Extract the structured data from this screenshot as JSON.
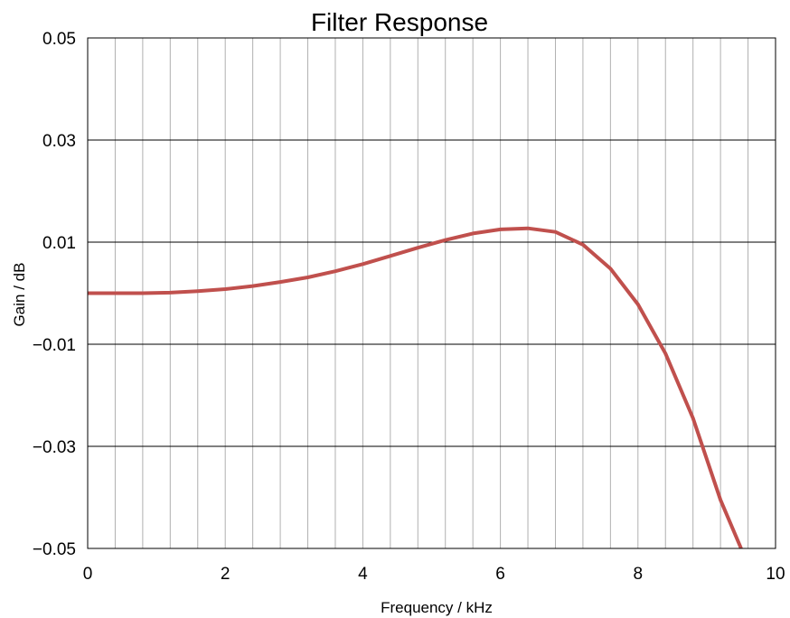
{
  "chart_data": {
    "type": "line",
    "title": "Filter Response",
    "xlabel": "Frequency / kHz",
    "ylabel": "Gain / dB",
    "xlim": [
      0,
      10
    ],
    "ylim": [
      -0.05,
      0.05
    ],
    "x_ticks": [
      0,
      2,
      4,
      6,
      8,
      10
    ],
    "x_tick_labels": [
      "0",
      "2",
      "4",
      "6",
      "8",
      "10"
    ],
    "y_ticks": [
      0.05,
      0.03,
      0.01,
      -0.01,
      -0.03,
      -0.05
    ],
    "y_tick_labels": [
      "0.05",
      "0.03",
      "0.01",
      "−0.01",
      "−0.03",
      "−0.05"
    ],
    "minor_x_grid_step": 0.4,
    "major_y_grid": [
      0.03,
      0.01,
      -0.01,
      -0.03
    ],
    "grid": true,
    "legend": "none",
    "series": [
      {
        "color": "#c0504d",
        "x": [
          0,
          0.4,
          0.8,
          1.2,
          1.6,
          2.0,
          2.4,
          2.8,
          3.2,
          3.6,
          4.0,
          4.4,
          4.8,
          5.2,
          5.6,
          6.0,
          6.4,
          6.8,
          7.2,
          7.6,
          8.0,
          8.4,
          8.8,
          9.2,
          9.5
        ],
        "y": [
          0.0,
          0.0,
          0.0,
          0.0001,
          0.0004,
          0.0008,
          0.0014,
          0.0022,
          0.0031,
          0.0043,
          0.0057,
          0.0073,
          0.0089,
          0.0104,
          0.0117,
          0.0125,
          0.0127,
          0.012,
          0.0095,
          0.0048,
          -0.0022,
          -0.0118,
          -0.0245,
          -0.0405,
          -0.05
        ]
      }
    ]
  }
}
